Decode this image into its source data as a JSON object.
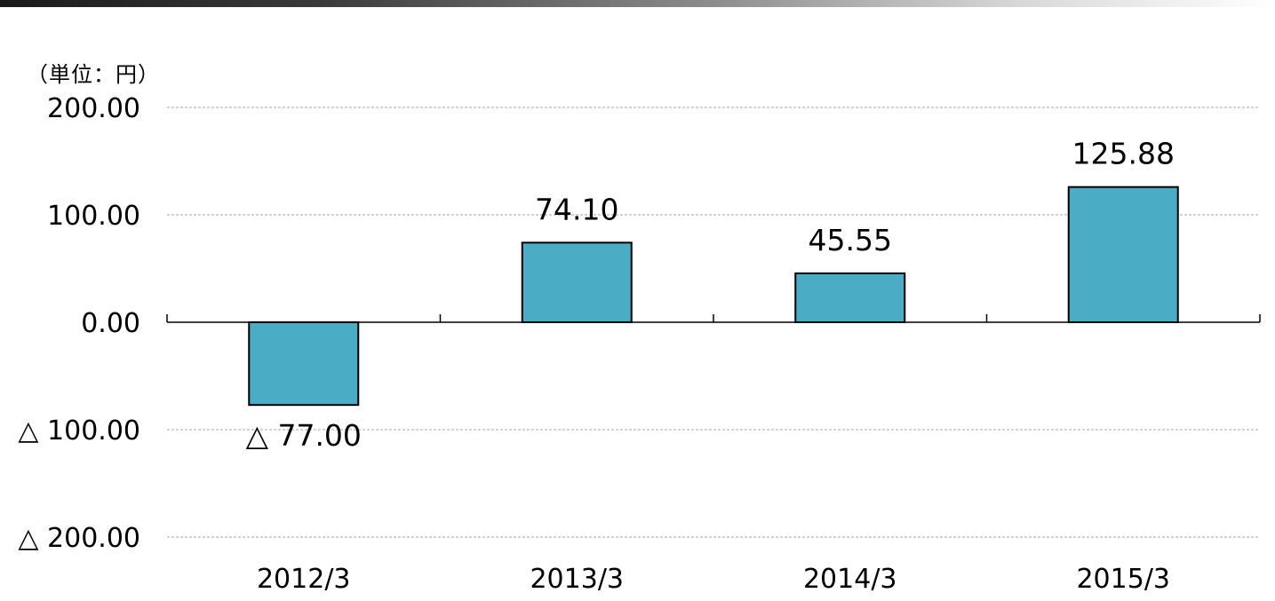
{
  "header": {
    "unit_label": "（単位：円）"
  },
  "chart_data": {
    "type": "bar",
    "categories": [
      "2012/3",
      "2013/3",
      "2014/3",
      "2015/3"
    ],
    "values": [
      -77.0,
      74.1,
      45.55,
      125.88
    ],
    "data_labels": [
      "△ 77.00",
      "74.10",
      "45.55",
      "125.88"
    ],
    "ylim": [
      -200,
      200
    ],
    "yticks": [
      200,
      100,
      0,
      -100,
      -200
    ],
    "ytick_labels": [
      "200.00",
      "100.00",
      "0.00",
      "△ 100.00",
      "△ 200.00"
    ],
    "title": "",
    "xlabel": "",
    "ylabel": "（単位：円）",
    "grid": true,
    "colors": {
      "bar": "#4bacc6",
      "bar_edge": "#000000",
      "grid": "#a6a6a6",
      "axis": "#000000"
    }
  }
}
